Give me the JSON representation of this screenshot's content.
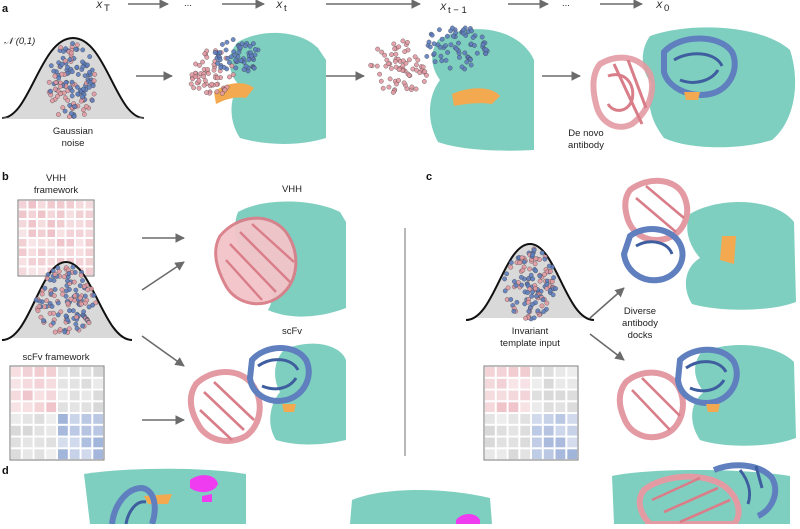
{
  "colors": {
    "surface": "#7fcfc0",
    "framework_red": "#e39aa3",
    "framework_blue": "#5f7fbf",
    "epitope": "#f2a94f",
    "hotspot": "#f03cf0",
    "gaussian_fill": "#d9d9d9"
  },
  "panel_a": {
    "letter": "a",
    "steps": [
      "X",
      "...",
      "X",
      "X",
      "...",
      "X"
    ],
    "step_subscripts": [
      "T",
      "",
      "t",
      "t − 1",
      "",
      "0"
    ],
    "normal_label": "𝒩 (0,1)",
    "noise_label": [
      "Gaussian",
      "noise"
    ],
    "result_label": [
      "De novo",
      "antibody"
    ]
  },
  "panel_b": {
    "letter": "b",
    "vhh_framework_label": [
      "VHH",
      "framework"
    ],
    "scfv_framework_label": "scFv framework",
    "vhh_label": "VHH",
    "scfv_label": "scFv"
  },
  "panel_c": {
    "letter": "c",
    "template_label": [
      "Invariant",
      "template input"
    ],
    "docks_label": [
      "Diverse",
      "antibody",
      "docks"
    ]
  },
  "panel_d": {
    "letter": "d"
  },
  "icons": [
    "protein-surface-icon",
    "antibody-ribbon-icon",
    "gaussian-curve-icon",
    "template-matrix-icon"
  ]
}
